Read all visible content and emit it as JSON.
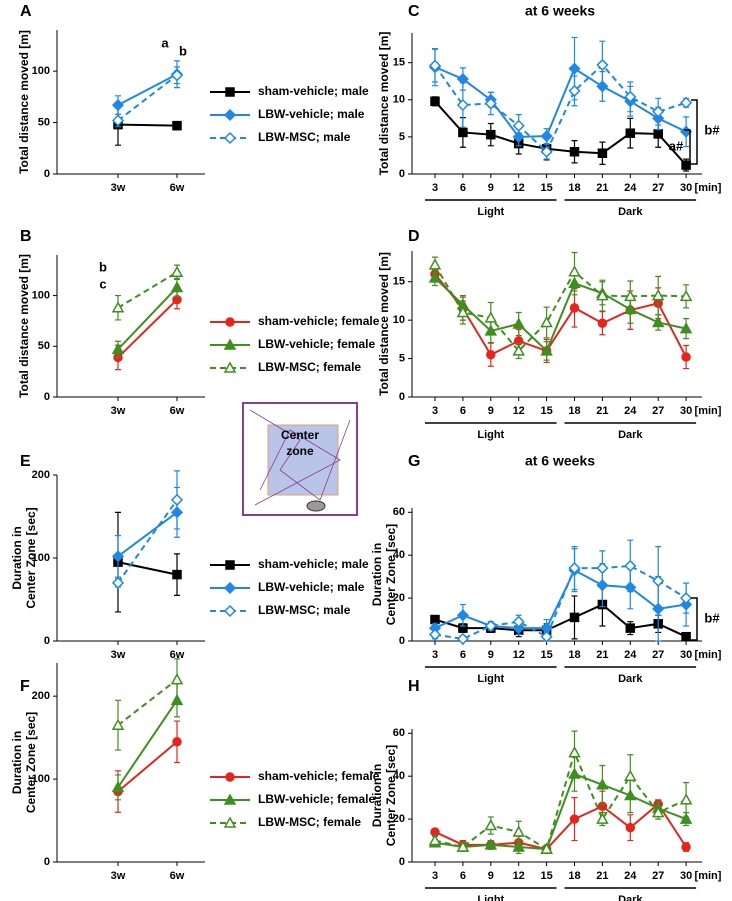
{
  "chart_data": [
    {
      "type": "line",
      "panel": "A",
      "y_label": [
        "Total distance moved [m]"
      ],
      "categories": [
        "3w",
        "6w"
      ],
      "ylim": [
        0,
        140
      ],
      "yticks": [
        0,
        50,
        100
      ],
      "legend": "right",
      "annotations": [
        "a",
        "b"
      ],
      "series": [
        {
          "name": "sham-vehicle; male",
          "color": "#000000",
          "marker": "square",
          "filled": true,
          "dashed": false,
          "values": [
            48,
            47
          ],
          "errors": [
            20,
            4
          ]
        },
        {
          "name": "LBW-vehicle; male",
          "color": "#1e88e5",
          "marker": "diamond",
          "filled": true,
          "dashed": false,
          "values": [
            67,
            97
          ],
          "errors": [
            9,
            13
          ]
        },
        {
          "name": "LBW-MSC; male",
          "color": "#1e88e5",
          "marker": "diamond",
          "filled": false,
          "dashed": true,
          "values": [
            52,
            96
          ],
          "errors": [
            6,
            8
          ]
        }
      ]
    },
    {
      "type": "line",
      "panel": "B",
      "y_label": [
        "Total distance moved [m]"
      ],
      "categories": [
        "3w",
        "6w"
      ],
      "ylim": [
        0,
        140
      ],
      "yticks": [
        0,
        50,
        100
      ],
      "legend": "right",
      "annotations": [
        "b",
        "c"
      ],
      "series": [
        {
          "name": "sham-vehicle; female",
          "color": "#e5251d",
          "marker": "circle",
          "filled": true,
          "dashed": false,
          "values": [
            39,
            96
          ],
          "errors": [
            12,
            9
          ]
        },
        {
          "name": "LBW-vehicle; female",
          "color": "#3f8f1f",
          "marker": "triangle",
          "filled": true,
          "dashed": false,
          "values": [
            47,
            108
          ],
          "errors": [
            8,
            9
          ]
        },
        {
          "name": "LBW-MSC; female",
          "color": "#3f8f1f",
          "marker": "triangle",
          "filled": false,
          "dashed": true,
          "values": [
            88,
            123
          ],
          "errors": [
            12,
            7
          ]
        }
      ]
    },
    {
      "type": "line",
      "panel": "C",
      "title": "at 6 weeks",
      "y_label": [
        "Total distance moved [m]"
      ],
      "x_label": "[min]",
      "groups": [
        "Light",
        "Dark"
      ],
      "categories": [
        "3",
        "6",
        "9",
        "12",
        "15",
        "18",
        "21",
        "24",
        "27",
        "30"
      ],
      "ylim": [
        0,
        19
      ],
      "yticks": [
        0,
        5,
        10,
        15
      ],
      "annotations": [
        "b#",
        "a#"
      ],
      "series": [
        {
          "color": "#000000",
          "marker": "square",
          "filled": true,
          "dashed": false,
          "values": [
            9.8,
            5.6,
            5.3,
            4.1,
            3.4,
            3.0,
            2.8,
            5.5,
            5.4,
            1.2
          ],
          "errors": [
            0.6,
            2,
            1.5,
            1.4,
            1.5,
            1.5,
            1.5,
            2,
            1.8,
            0.8
          ]
        },
        {
          "color": "#1e88e5",
          "marker": "diamond",
          "filled": true,
          "dashed": false,
          "values": [
            14.4,
            12.8,
            10.0,
            5.0,
            5.1,
            14.2,
            11.8,
            9.8,
            7.5,
            5.7
          ],
          "errors": [
            2.5,
            1.5,
            1,
            1.2,
            1,
            4.2,
            2,
            2,
            1.5,
            2
          ]
        },
        {
          "color": "#1e88e5",
          "marker": "diamond",
          "filled": false,
          "dashed": true,
          "values": [
            14.6,
            9.3,
            9.5,
            6.5,
            3.0,
            11.2,
            14.7,
            10.4,
            8.4,
            9.6
          ],
          "errors": [
            2.2,
            3,
            1.5,
            1.5,
            1,
            2,
            3.2,
            2,
            1.8,
            0.6
          ]
        }
      ]
    },
    {
      "type": "line",
      "panel": "D",
      "y_label": [
        "Total distance moved [m]"
      ],
      "x_label": "[min]",
      "groups": [
        "Light",
        "Dark"
      ],
      "categories": [
        "3",
        "6",
        "9",
        "12",
        "15",
        "18",
        "21",
        "24",
        "27",
        "30"
      ],
      "ylim": [
        0,
        19
      ],
      "yticks": [
        0,
        5,
        10,
        15
      ],
      "series": [
        {
          "color": "#e5251d",
          "marker": "circle",
          "filled": true,
          "dashed": false,
          "values": [
            16.0,
            11.5,
            5.5,
            7.3,
            6.0,
            11.6,
            9.6,
            11.3,
            12.2,
            5.2
          ],
          "errors": [
            1,
            1.5,
            1.5,
            1.5,
            1.5,
            2.5,
            1.5,
            2.5,
            2,
            1.5
          ]
        },
        {
          "color": "#3f8f1f",
          "marker": "triangle",
          "filled": true,
          "dashed": false,
          "values": [
            15.5,
            12.0,
            8.6,
            9.5,
            6.0,
            14.8,
            13.5,
            11.4,
            9.7,
            8.9
          ],
          "errors": [
            1,
            1.2,
            1.5,
            1.5,
            1.2,
            1.5,
            1.5,
            1.8,
            1,
            1.3
          ]
        },
        {
          "color": "#3f8f1f",
          "marker": "triangle",
          "filled": false,
          "dashed": true,
          "values": [
            17.2,
            11.0,
            10.3,
            6.0,
            9.7,
            16.3,
            13.2,
            13.1,
            13.2,
            13.1
          ],
          "errors": [
            1,
            1.5,
            2,
            1,
            2,
            2.5,
            2,
            2,
            2.5,
            1.5
          ]
        }
      ]
    },
    {
      "type": "line",
      "panel": "E",
      "y_label": [
        "Duration in",
        "Center Zone [sec]"
      ],
      "categories": [
        "3w",
        "6w"
      ],
      "ylim": [
        0,
        200
      ],
      "yticks": [
        0,
        100,
        200
      ],
      "legend": "right",
      "series": [
        {
          "name": "sham-vehicle; male",
          "color": "#000000",
          "marker": "square",
          "filled": true,
          "dashed": false,
          "values": [
            95,
            80
          ],
          "errors": [
            60,
            25
          ]
        },
        {
          "name": "LBW-vehicle; male",
          "color": "#1e88e5",
          "marker": "diamond",
          "filled": true,
          "dashed": false,
          "values": [
            102,
            155
          ],
          "errors": [
            25,
            30
          ]
        },
        {
          "name": "LBW-MSC; male",
          "color": "#1e88e5",
          "marker": "diamond",
          "filled": false,
          "dashed": true,
          "values": [
            70,
            170
          ],
          "errors": [
            5,
            35
          ]
        }
      ]
    },
    {
      "type": "line",
      "panel": "F",
      "y_label": [
        "Duration in",
        "Center Zone [sec]"
      ],
      "categories": [
        "3w",
        "6w"
      ],
      "ylim": [
        0,
        240
      ],
      "yticks": [
        0,
        100,
        200
      ],
      "legend": "right",
      "series": [
        {
          "name": "sham-vehicle; female",
          "color": "#e5251d",
          "marker": "circle",
          "filled": true,
          "dashed": false,
          "values": [
            85,
            145
          ],
          "errors": [
            25,
            25
          ]
        },
        {
          "name": "LBW-vehicle; female",
          "color": "#3f8f1f",
          "marker": "triangle",
          "filled": true,
          "dashed": false,
          "values": [
            90,
            195
          ],
          "errors": [
            15,
            20
          ]
        },
        {
          "name": "LBW-MSC; female",
          "color": "#3f8f1f",
          "marker": "triangle",
          "filled": false,
          "dashed": true,
          "values": [
            165,
            220
          ],
          "errors": [
            30,
            25
          ]
        }
      ]
    },
    {
      "type": "line",
      "panel": "G",
      "title": "at 6 weeks",
      "y_label": [
        "Duration in",
        "Center Zone [sec]"
      ],
      "x_label": "[min]",
      "groups": [
        "Light",
        "Dark"
      ],
      "categories": [
        "3",
        "6",
        "9",
        "12",
        "15",
        "18",
        "21",
        "24",
        "27",
        "30"
      ],
      "ylim": [
        0,
        62
      ],
      "yticks": [
        0,
        20,
        40,
        60
      ],
      "annotations": [
        "b#"
      ],
      "series": [
        {
          "color": "#000000",
          "marker": "square",
          "filled": true,
          "dashed": false,
          "values": [
            10,
            6,
            6,
            5,
            5,
            11,
            17,
            6,
            8,
            2
          ],
          "errors": [
            1,
            2,
            2,
            3,
            3,
            10,
            10,
            3,
            4,
            1
          ]
        },
        {
          "color": "#1e88e5",
          "marker": "diamond",
          "filled": true,
          "dashed": false,
          "values": [
            6,
            12,
            7,
            6,
            6,
            33,
            26,
            25,
            15,
            17
          ],
          "errors": [
            2,
            5,
            2,
            3,
            4,
            10,
            10,
            10,
            15,
            10
          ]
        },
        {
          "color": "#1e88e5",
          "marker": "diamond",
          "filled": false,
          "dashed": true,
          "values": [
            3,
            1,
            7,
            9,
            2,
            34,
            34,
            35,
            28,
            20
          ],
          "errors": [
            2,
            1,
            2,
            3,
            2,
            10,
            8,
            12,
            16,
            7
          ]
        }
      ]
    },
    {
      "type": "line",
      "panel": "H",
      "y_label": [
        "Duration in",
        "Center Zone [sec]"
      ],
      "x_label": "[min]",
      "groups": [
        "Light",
        "Dark"
      ],
      "categories": [
        "3",
        "6",
        "9",
        "12",
        "15",
        "18",
        "21",
        "24",
        "27",
        "30"
      ],
      "ylim": [
        0,
        62
      ],
      "yticks": [
        0,
        20,
        40,
        60
      ],
      "series": [
        {
          "color": "#e5251d",
          "marker": "circle",
          "filled": true,
          "dashed": false,
          "values": [
            14,
            8,
            8,
            9,
            6,
            20,
            26,
            16,
            27,
            7
          ],
          "errors": [
            1,
            2,
            2,
            3,
            1,
            10,
            7,
            6,
            2,
            2
          ]
        },
        {
          "color": "#3f8f1f",
          "marker": "triangle",
          "filled": true,
          "dashed": false,
          "values": [
            9,
            7,
            8,
            7,
            6,
            41,
            36,
            31,
            25,
            20
          ],
          "errors": [
            1,
            2,
            2,
            3,
            1,
            8,
            9,
            8,
            3,
            3
          ]
        },
        {
          "color": "#3f8f1f",
          "marker": "triangle",
          "filled": false,
          "dashed": true,
          "values": [
            10,
            7,
            17,
            14,
            6,
            51,
            20,
            40,
            23,
            29
          ],
          "errors": [
            2,
            2,
            4,
            5,
            2,
            10,
            3,
            10,
            3,
            8
          ]
        }
      ]
    }
  ],
  "inset": {
    "label_lines": [
      "Center",
      "zone"
    ]
  }
}
